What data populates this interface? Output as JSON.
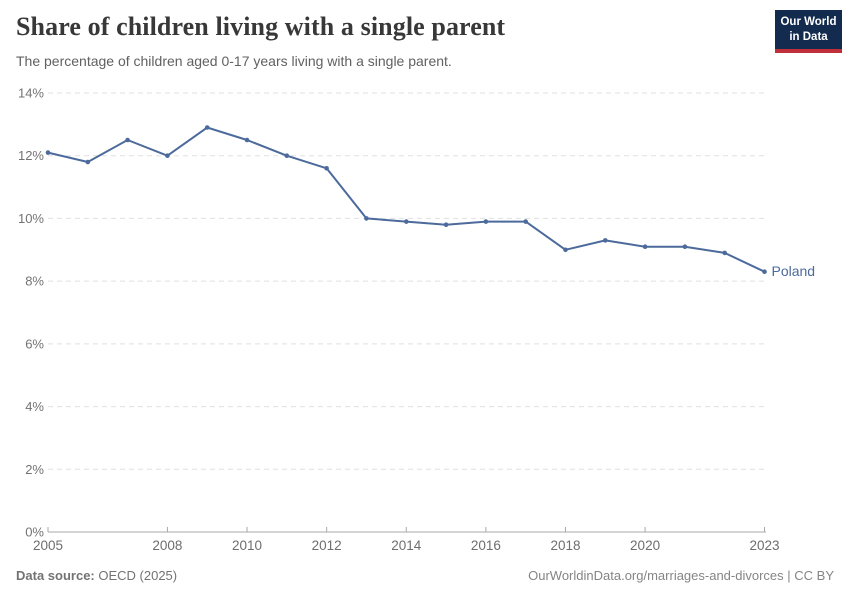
{
  "header": {
    "title": "Share of children living with a single parent",
    "subtitle": "The percentage of children aged 0-17 years living with a single parent."
  },
  "logo": {
    "line1": "Our World",
    "line2": "in Data",
    "bg_color": "#122B4E",
    "stripe_color": "#C0303A"
  },
  "chart_data": {
    "type": "line",
    "title": "Share of children living with a single parent",
    "subtitle": "The percentage of children aged 0-17 years living with a single parent.",
    "x": [
      2005,
      2006,
      2007,
      2008,
      2009,
      2010,
      2011,
      2012,
      2013,
      2014,
      2015,
      2016,
      2017,
      2018,
      2019,
      2020,
      2021,
      2022,
      2023
    ],
    "series": [
      {
        "name": "Poland",
        "color": "#4C6A9C",
        "values": [
          12.1,
          11.8,
          12.5,
          12.0,
          12.9,
          12.5,
          12.0,
          11.6,
          10.0,
          9.9,
          9.8,
          9.9,
          9.9,
          9.0,
          9.3,
          9.1,
          9.1,
          8.9,
          8.3
        ]
      }
    ],
    "xlabel": "",
    "ylabel": "",
    "ylim": [
      0,
      14
    ],
    "x_range": [
      2005,
      2023
    ],
    "yticks": [
      0,
      2,
      4,
      6,
      8,
      10,
      12,
      14
    ],
    "ytick_suffix": "%",
    "xticks": [
      2005,
      2008,
      2010,
      2012,
      2014,
      2016,
      2018,
      2020,
      2023
    ],
    "grid": "horizontal-dashed",
    "legend_position": "end-of-line-label",
    "end_label": "Poland"
  },
  "colors": {
    "line": "#4C6A9C",
    "gridline": "#e0e0e0",
    "axis": "#a8a8a8",
    "axis_label": "#6e6e6e",
    "ytick_label": "#737373"
  },
  "footer": {
    "source_label": "Data source:",
    "source_value": " OECD (2025)",
    "link": "OurWorldinData.org/marriages-and-divorces",
    "license": " | CC BY"
  }
}
